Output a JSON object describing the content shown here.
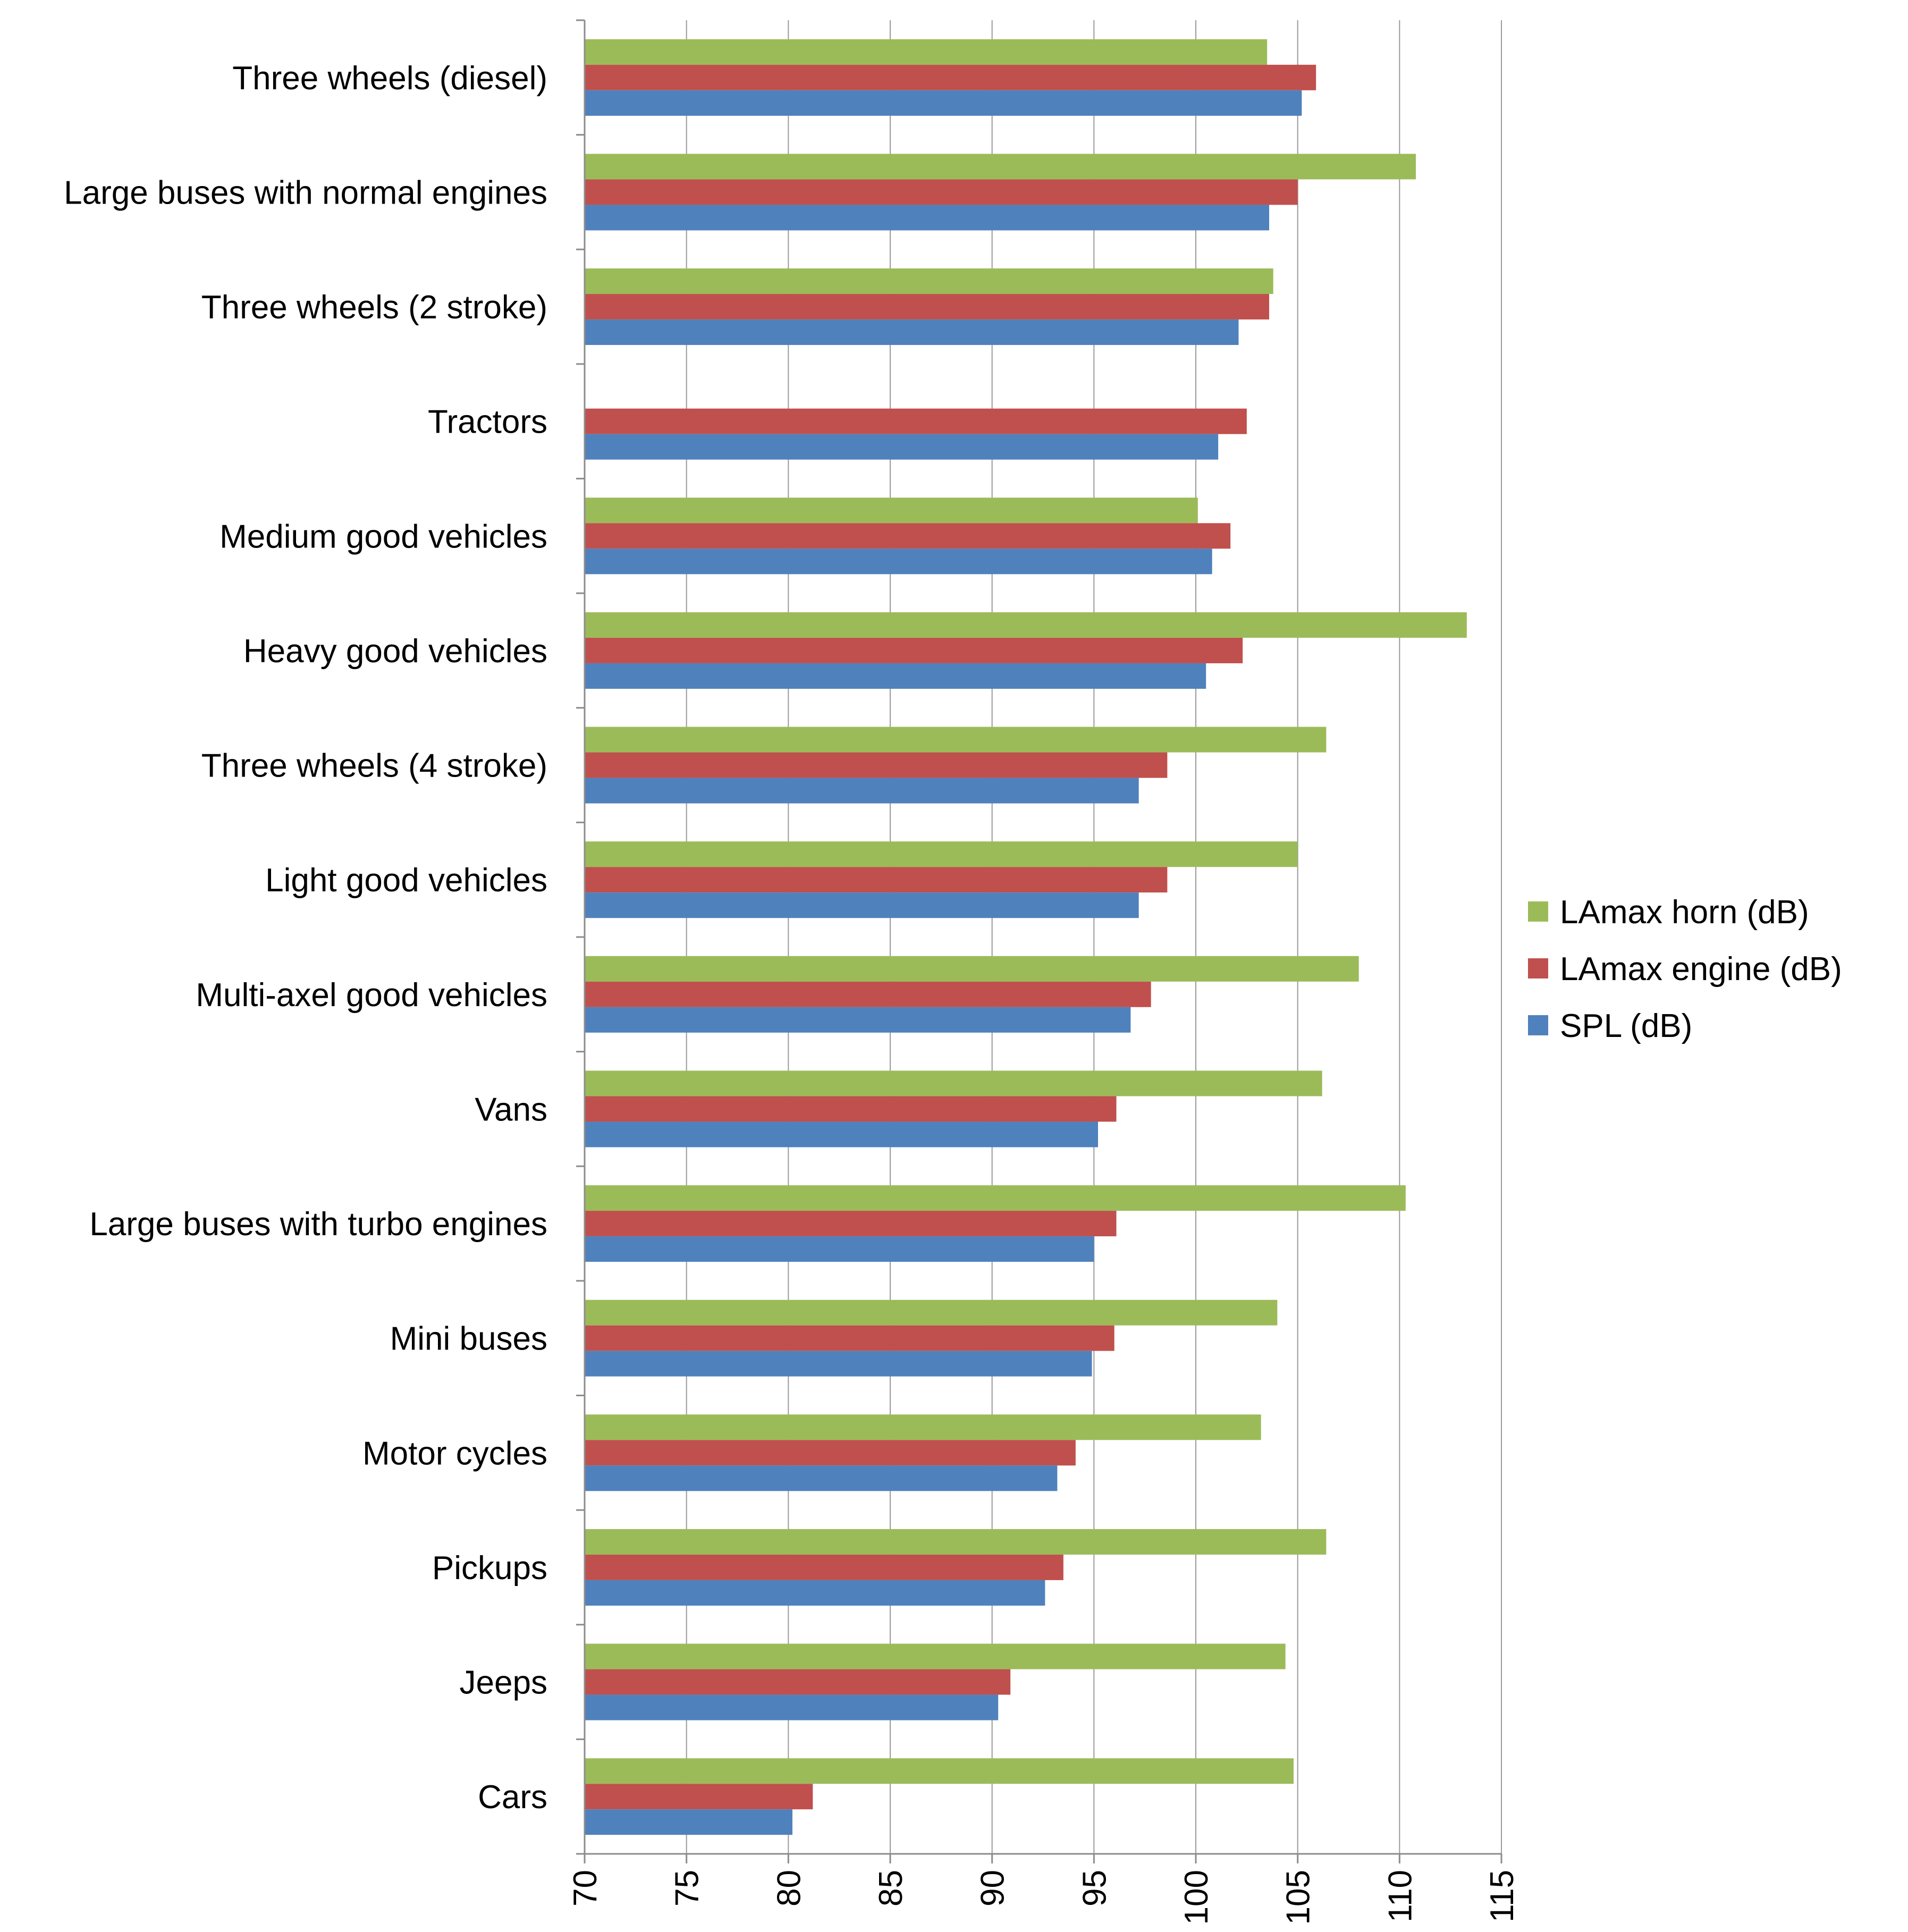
{
  "chart_data": {
    "type": "bar",
    "orientation": "horizontal",
    "title": "",
    "xlabel": "",
    "ylabel": "",
    "xlim": [
      70,
      115
    ],
    "xticks": [
      "70",
      "75",
      "80",
      "85",
      "90",
      "95",
      "100",
      "105",
      "110",
      "115"
    ],
    "grid": "vertical",
    "legend_position": "right",
    "categories": [
      "Three wheels (diesel)",
      "Large buses with normal engines",
      "Three wheels (2 stroke)",
      "Tractors",
      "Medium good vehicles",
      "Heavy good vehicles",
      "Three wheels (4 stroke)",
      "Light good vehicles",
      "Multi-axel good vehicles",
      "Vans",
      "Large buses with turbo engines",
      "Mini buses",
      "Motor cycles",
      "Pickups",
      "Jeeps",
      "Cars"
    ],
    "series": [
      {
        "name": "LAmax horn (dB)",
        "color": "#9BBB59",
        "values": [
          103.5,
          110.8,
          103.8,
          null,
          100.1,
          113.3,
          106.4,
          105.0,
          108.0,
          106.2,
          110.3,
          104.0,
          103.2,
          106.4,
          104.4,
          104.8
        ]
      },
      {
        "name": "LAmax engine (dB)",
        "color": "#C0504D",
        "values": [
          105.9,
          105.0,
          103.6,
          102.5,
          101.7,
          102.3,
          98.6,
          98.6,
          97.8,
          96.1,
          96.1,
          96.0,
          94.1,
          93.5,
          90.9,
          81.2
        ]
      },
      {
        "name": "SPL (dB)",
        "color": "#4F81BD",
        "values": [
          105.2,
          103.6,
          102.1,
          101.1,
          100.8,
          100.5,
          97.2,
          97.2,
          96.8,
          95.2,
          95.0,
          94.9,
          93.2,
          92.6,
          90.3,
          80.2
        ]
      }
    ]
  }
}
